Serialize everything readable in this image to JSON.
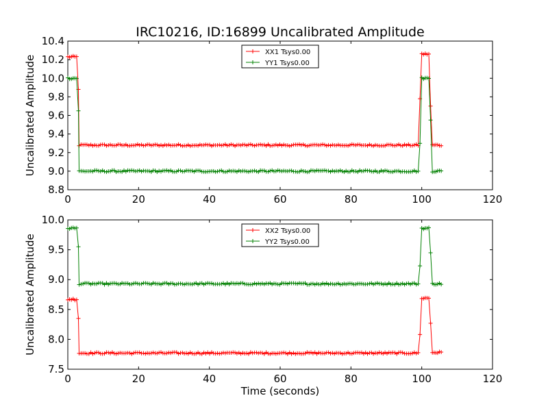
{
  "chart_data": [
    {
      "type": "line",
      "title": "IRC10216, ID:16899 Uncalibrated Amplitude",
      "xlabel": "",
      "ylabel": "Uncalibrated Amplitude",
      "xlim": [
        0,
        120
      ],
      "ylim": [
        8.8,
        10.4
      ],
      "xticks": [
        "0",
        "20",
        "40",
        "60",
        "80",
        "100",
        "120"
      ],
      "yticks": [
        "8.8",
        "9.0",
        "9.2",
        "9.4",
        "9.6",
        "9.8",
        "10.0",
        "10.2",
        "10.4"
      ],
      "grid": false,
      "legend": "top-center",
      "series": [
        {
          "name": "XX1 Tsys0.00",
          "color": "#ff0000",
          "marker": "plus",
          "segments": [
            {
              "x0": 0,
              "x1": 2.5,
              "y": 10.23
            },
            {
              "x0": 3.2,
              "x1": 99,
              "y": 9.28
            },
            {
              "x0": 100,
              "x1": 102,
              "y": 10.26
            },
            {
              "x0": 103,
              "x1": 105.5,
              "y": 9.28
            }
          ],
          "transitions": [
            [
              3,
              9.88
            ],
            [
              99.5,
              9.78
            ],
            [
              102.5,
              9.7
            ]
          ]
        },
        {
          "name": "YY1 Tsys0.00",
          "color": "#008000",
          "marker": "plus",
          "segments": [
            {
              "x0": 0,
              "x1": 2.5,
              "y": 10.0
            },
            {
              "x0": 3.2,
              "x1": 99,
              "y": 9.0
            },
            {
              "x0": 100,
              "x1": 102,
              "y": 10.0
            },
            {
              "x0": 103,
              "x1": 105.5,
              "y": 9.0
            }
          ],
          "transitions": [
            [
              3,
              9.65
            ],
            [
              99.5,
              9.3
            ],
            [
              102.5,
              9.55
            ]
          ]
        }
      ]
    },
    {
      "type": "line",
      "title": "",
      "xlabel": "Time (seconds)",
      "ylabel": "Uncalibrated Amplitude",
      "xlim": [
        0,
        120
      ],
      "ylim": [
        7.5,
        10.0
      ],
      "xticks": [
        "0",
        "20",
        "40",
        "60",
        "80",
        "100",
        "120"
      ],
      "yticks": [
        "7.5",
        "8.0",
        "8.5",
        "9.0",
        "9.5",
        "10.0"
      ],
      "grid": false,
      "legend": "top-center",
      "series": [
        {
          "name": "XX2 Tsys0.00",
          "color": "#ff0000",
          "marker": "plus",
          "segments": [
            {
              "x0": 0,
              "x1": 2.5,
              "y": 8.67
            },
            {
              "x0": 3.2,
              "x1": 99,
              "y": 7.77
            },
            {
              "x0": 100,
              "x1": 102,
              "y": 8.69
            },
            {
              "x0": 103,
              "x1": 105.5,
              "y": 7.78
            }
          ],
          "transitions": [
            [
              3,
              8.35
            ],
            [
              99.5,
              8.08
            ],
            [
              102.5,
              8.27
            ]
          ]
        },
        {
          "name": "YY2 Tsys0.00",
          "color": "#008000",
          "marker": "plus",
          "segments": [
            {
              "x0": 0,
              "x1": 2.5,
              "y": 9.86
            },
            {
              "x0": 3.2,
              "x1": 99,
              "y": 8.93
            },
            {
              "x0": 100,
              "x1": 102,
              "y": 9.86
            },
            {
              "x0": 103,
              "x1": 105.5,
              "y": 8.93
            }
          ],
          "transitions": [
            [
              3,
              9.55
            ],
            [
              99.5,
              9.23
            ],
            [
              102.5,
              9.45
            ]
          ]
        }
      ]
    }
  ]
}
